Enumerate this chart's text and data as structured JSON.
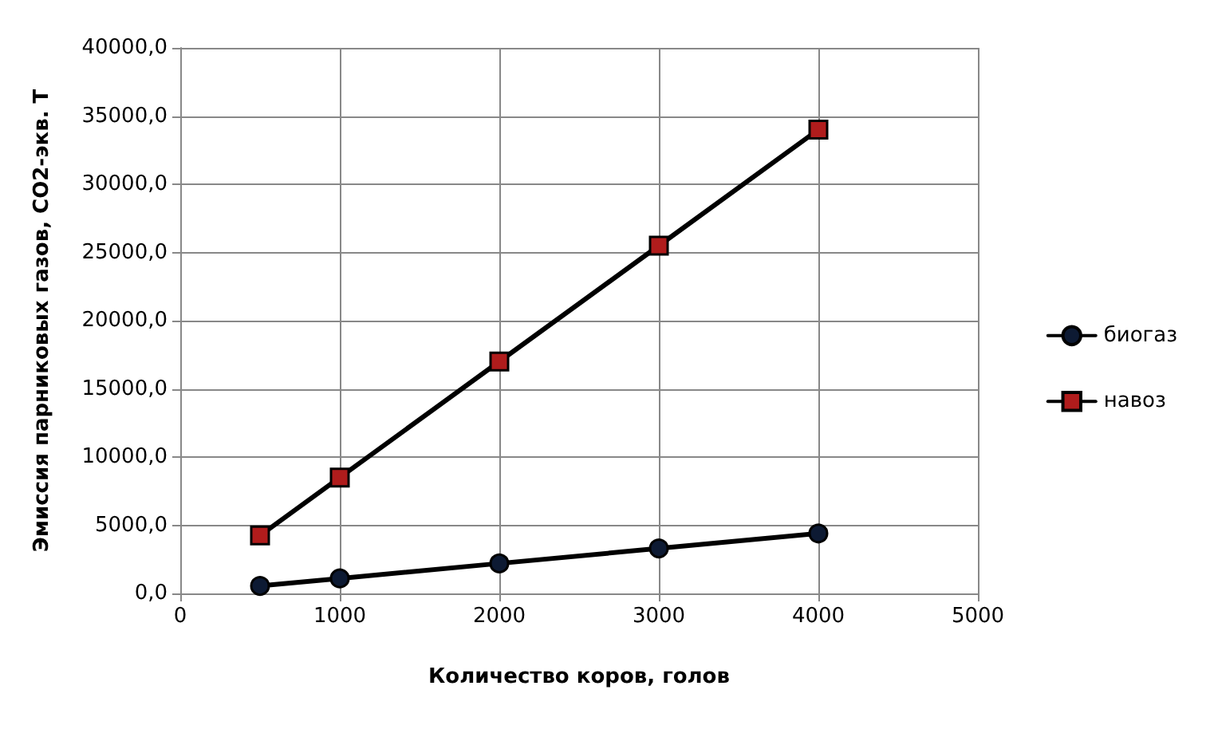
{
  "chart_data": {
    "type": "line",
    "xlabel": "Количество коров, голов",
    "ylabel": "Эмиссия парниковых газов, СО2-экв. Т",
    "xlim": [
      0,
      5000
    ],
    "xticks": [
      0,
      1000,
      2000,
      3000,
      4000,
      5000
    ],
    "ylim": [
      0,
      40000
    ],
    "yticks": [
      {
        "value": 0,
        "label": "0,0"
      },
      {
        "value": 5000,
        "label": "5000,0"
      },
      {
        "value": 10000,
        "label": "10000,0"
      },
      {
        "value": 15000,
        "label": "15000,0"
      },
      {
        "value": 20000,
        "label": "20000,0"
      },
      {
        "value": 25000,
        "label": "25000,0"
      },
      {
        "value": 30000,
        "label": "30000,0"
      },
      {
        "value": 35000,
        "label": "35000,0"
      },
      {
        "value": 40000,
        "label": "40000,0"
      }
    ],
    "x": [
      500,
      1000,
      2000,
      3000,
      4000
    ],
    "series": [
      {
        "name": "биогаз",
        "color": "#0d1a33",
        "marker": "circle",
        "values": [
          550,
          1100,
          2200,
          3300,
          4400
        ]
      },
      {
        "name": "навоз",
        "color": "#b01c1c",
        "marker": "square",
        "values": [
          4250,
          8500,
          17000,
          25500,
          34000
        ]
      }
    ],
    "grid": true,
    "legend": "right",
    "line_style": "solid"
  }
}
